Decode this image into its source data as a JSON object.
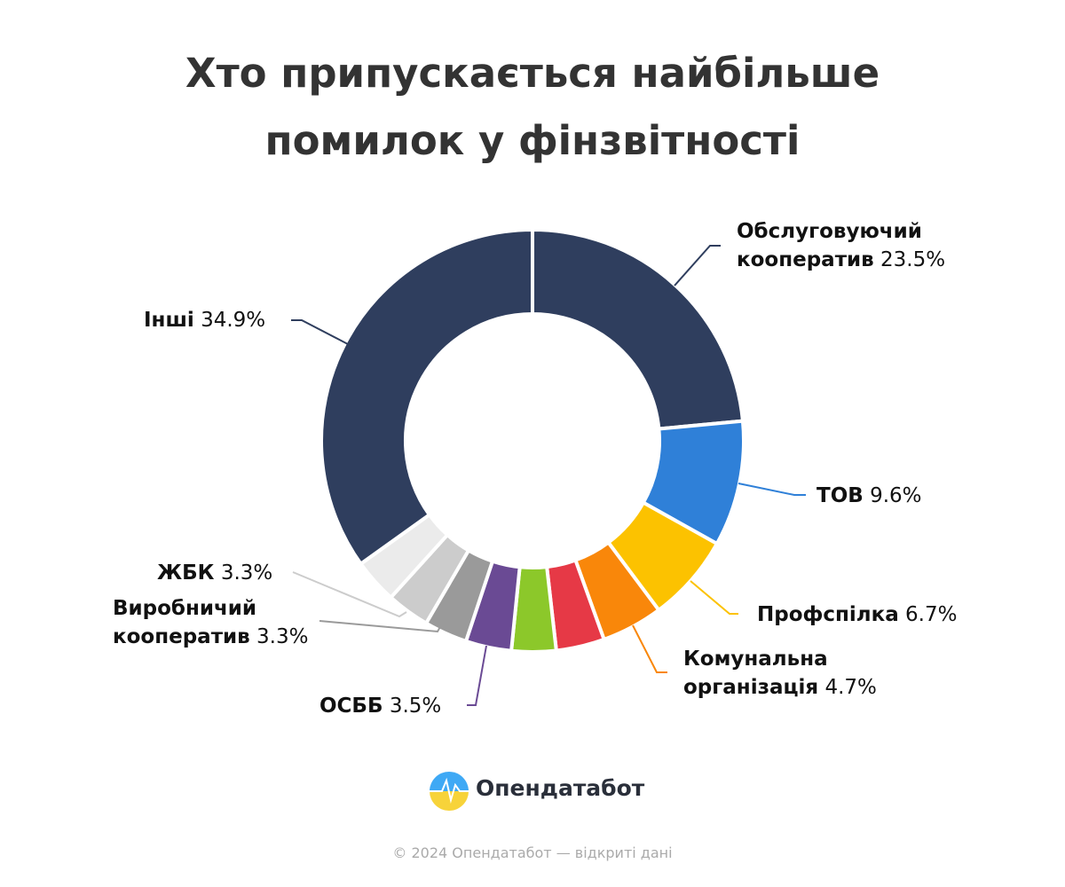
{
  "chart_data": {
    "type": "donut",
    "title": "Хто припускається найбільше помилок у фінзвітності",
    "categories": [
      "Обслуговуючий кооператив",
      "ТОВ",
      "Профспілка",
      "Комунальна організація",
      null,
      null,
      "ОСББ",
      "Виробничий кооператив",
      "ЖБК",
      null,
      "Інші"
    ],
    "values": [
      23.5,
      9.6,
      6.7,
      4.7,
      3.7,
      3.4,
      3.5,
      3.3,
      3.3,
      3.4,
      34.9
    ],
    "value_labels": [
      "23.5%",
      "9.6%",
      "6.7%",
      "4.7%",
      null,
      null,
      "3.5%",
      "3.3%",
      "3.3%",
      null,
      "34.9%"
    ],
    "colors": [
      "#2f3e5e",
      "#2f80d8",
      "#fcc200",
      "#f9870a",
      "#e63946",
      "#8cc82a",
      "#6a4a94",
      "#9a9a9a",
      "#cccccc",
      "#ebebeb",
      "#2f3e5e"
    ]
  },
  "logo": "Опендатабот",
  "footer": "© 2024 Опендатабот — відкриті дані"
}
